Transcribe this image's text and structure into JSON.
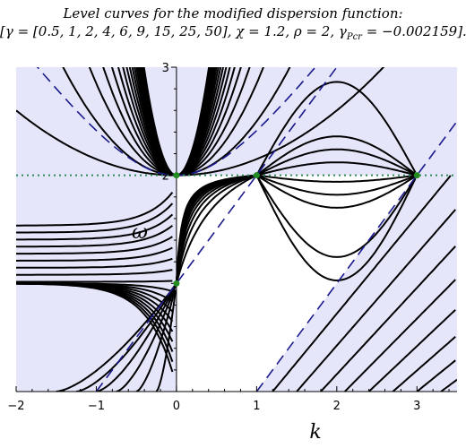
{
  "title_line1": "Level curves for the modified dispersion function:",
  "title_line2_main": "[γ = [0.5, 1, 2, 4, 6, 9, 15, 25, 50], χ = 1.2, ρ = 2, γ",
  "title_line2_sub": "Pcr",
  "title_line2_end": " = −0.002159].",
  "chart_data": {
    "type": "line",
    "title": "Level curves for the modified dispersion function: [γ = [0.5, 1, 2, 4, 6, 9, 15, 25, 50], χ = 1.2, ρ = 2, γ_Pcr = −0.002159].",
    "xlabel": "k",
    "ylabel": "ω",
    "xlim": [
      -2,
      3.5
    ],
    "ylim": [
      0,
      3
    ],
    "x_ticks": [
      "−2",
      "−1",
      "0",
      "1",
      "2",
      "3"
    ],
    "y_ticks": [
      "2",
      "3"
    ],
    "gamma_levels": [
      0.5,
      1,
      2,
      4,
      6,
      9,
      15,
      25,
      50
    ],
    "parameters": {
      "chi": 1.2,
      "rho": 2,
      "gamma_Pcr": -0.002159
    },
    "colors": {
      "fill": "#e6e6fa",
      "curves": "#000000",
      "dashed": "#1a1a8c",
      "dotted": "#2e8b57",
      "points": "#228b22"
    },
    "critical_points": [
      {
        "k": 0,
        "omega": 1
      },
      {
        "k": 0,
        "omega": 2
      },
      {
        "k": 1,
        "omega": 2
      },
      {
        "k": 3,
        "omega": 2
      }
    ],
    "dashed_asymptotes": [
      {
        "name": "ω = sqrt(1 + k²) + 1",
        "kind": "hyperbola"
      },
      {
        "name": "ω = 1 + k",
        "kind": "line"
      },
      {
        "name": "ω = k − 1",
        "kind": "line"
      }
    ],
    "dotted_line": {
      "omega": 2
    },
    "grid": false
  }
}
